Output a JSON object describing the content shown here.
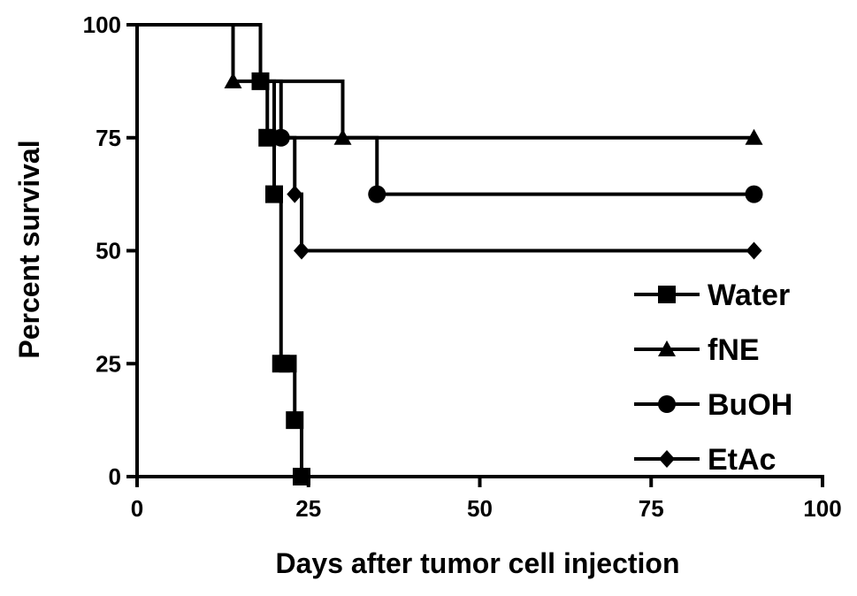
{
  "chart_data": {
    "type": "line",
    "title": "",
    "xlabel": "Days after tumor cell injection",
    "ylabel": "Percent survival",
    "xlim": [
      0,
      100
    ],
    "ylim": [
      0,
      100
    ],
    "x_ticks": [
      0,
      25,
      50,
      75,
      100
    ],
    "y_ticks": [
      0,
      25,
      50,
      75,
      100
    ],
    "grid": false,
    "legend_position": "bottom-right",
    "line_color": "#000000",
    "series": [
      {
        "name": "Water",
        "marker": "square",
        "steps": [
          [
            0,
            100
          ],
          [
            18,
            87.5
          ],
          [
            19,
            75
          ],
          [
            20,
            62.5
          ],
          [
            21,
            25
          ],
          [
            23,
            12.5
          ],
          [
            24,
            0
          ]
        ],
        "markers": [
          [
            18,
            87.5
          ],
          [
            19,
            75
          ],
          [
            20,
            62.5
          ],
          [
            21,
            25
          ],
          [
            22,
            25
          ],
          [
            23,
            12.5
          ],
          [
            24,
            0
          ]
        ],
        "end_x": 24
      },
      {
        "name": "fNE",
        "marker": "triangle",
        "steps": [
          [
            0,
            100
          ],
          [
            14,
            87.5
          ],
          [
            30,
            75
          ]
        ],
        "markers": [
          [
            14,
            87.5
          ],
          [
            30,
            75
          ],
          [
            90,
            75
          ]
        ],
        "end_x": 90
      },
      {
        "name": "BuOH",
        "marker": "circle",
        "steps": [
          [
            0,
            100
          ],
          [
            18,
            87.5
          ],
          [
            21,
            75
          ],
          [
            35,
            62.5
          ]
        ],
        "markers": [
          [
            21,
            75
          ],
          [
            35,
            62.5
          ],
          [
            90,
            62.5
          ]
        ],
        "end_x": 90
      },
      {
        "name": "EtAc",
        "marker": "diamond",
        "steps": [
          [
            0,
            100
          ],
          [
            18,
            87.5
          ],
          [
            20,
            75
          ],
          [
            23,
            62.5
          ],
          [
            24,
            50
          ]
        ],
        "markers": [
          [
            20,
            75
          ],
          [
            23,
            62.5
          ],
          [
            24,
            50
          ],
          [
            90,
            50
          ]
        ],
        "end_x": 90
      }
    ]
  }
}
